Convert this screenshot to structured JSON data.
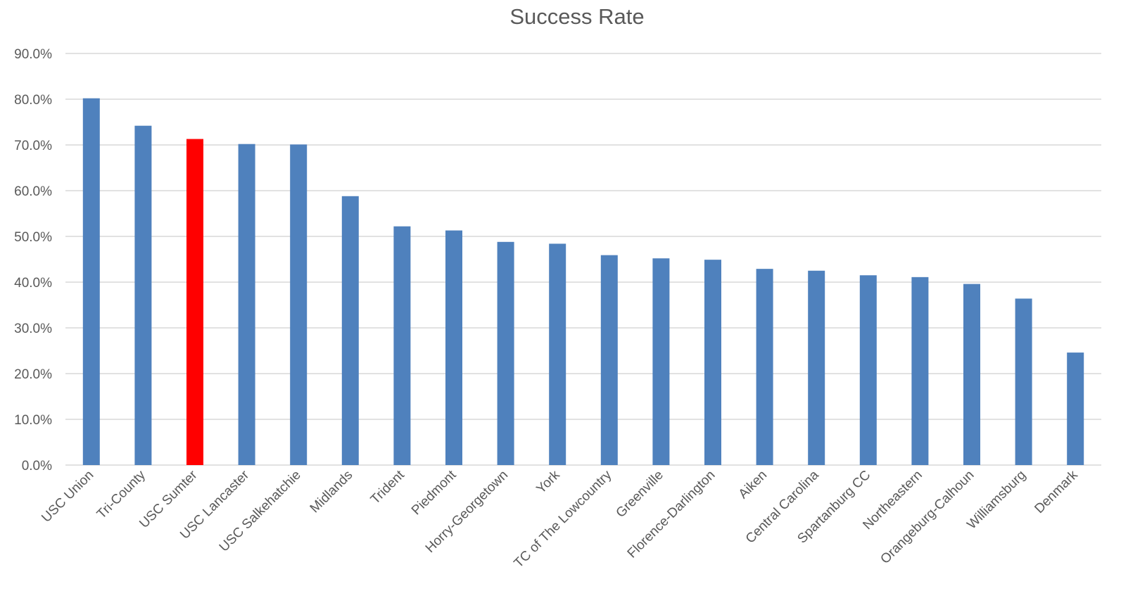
{
  "chart_data": {
    "type": "bar",
    "title": "Success Rate",
    "xlabel": "",
    "ylabel": "",
    "ylim": [
      0,
      90
    ],
    "ytick_values": [
      0,
      10,
      20,
      30,
      40,
      50,
      60,
      70,
      80,
      90
    ],
    "ytick_labels": [
      "0.0%",
      "10.0%",
      "20.0%",
      "30.0%",
      "40.0%",
      "50.0%",
      "60.0%",
      "70.0%",
      "80.0%",
      "90.0%"
    ],
    "grid": true,
    "legend": "none",
    "default_color": "#4f81bd",
    "highlight_color": "#ff0000",
    "highlight_category": "USC Sumter",
    "categories": [
      "USC Union",
      "Tri-County",
      "USC Sumter",
      "USC Lancaster",
      "USC Salkehatchie",
      "Midlands",
      "Trident",
      "Piedmont",
      "Horry-Georgetown",
      "York",
      "TC of The Lowcountry",
      "Greenville",
      "Florence-Darlington",
      "Aiken",
      "Central Carolina",
      "Spartanburg CC",
      "Northeastern",
      "Orangeburg-Calhoun",
      "Williamsburg",
      "Denmark"
    ],
    "values": [
      80.2,
      74.2,
      71.3,
      70.2,
      70.1,
      58.8,
      52.2,
      51.3,
      48.8,
      48.4,
      45.9,
      45.2,
      44.9,
      42.9,
      42.5,
      41.5,
      41.1,
      39.6,
      36.4,
      24.6
    ]
  }
}
